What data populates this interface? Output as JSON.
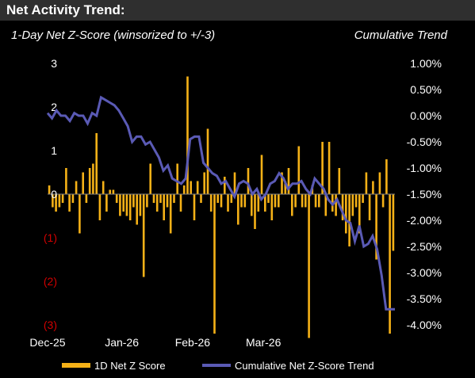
{
  "header": {
    "title": "Net Activity Trend:"
  },
  "subtitle_left": "1-Day Net Z-Score (winsorized to +/-3)",
  "subtitle_right": "Cumulative Trend",
  "colors": {
    "bars": "#f5b117",
    "line": "#5a5ab5",
    "negative_tick": "#d00000",
    "background": "#000000",
    "header_band": "#2f2f2f"
  },
  "chart_data": {
    "type": "bar+line",
    "x_tick_labels": [
      "Dec-25",
      "Jan-26",
      "Feb-26",
      "Mar-26"
    ],
    "x_tick_index": [
      0,
      22,
      43,
      64
    ],
    "left_axis": {
      "range": [
        -3,
        3
      ],
      "ticks": [
        3,
        2,
        1,
        0,
        -1,
        -2,
        -3
      ],
      "tick_labels": [
        "3",
        "2",
        "1",
        "0",
        "(1)",
        "(2)",
        "(3)"
      ]
    },
    "right_axis": {
      "range": [
        -4.0,
        1.0
      ],
      "ticks": [
        1.0,
        0.5,
        0.0,
        -0.5,
        -1.0,
        -1.5,
        -2.0,
        -2.5,
        -3.0,
        -3.5,
        -4.0
      ],
      "tick_labels": [
        "1.00%",
        "0.50%",
        "0.00%",
        "-0.50%",
        "-1.00%",
        "-1.50%",
        "-2.00%",
        "-2.50%",
        "-3.00%",
        "-3.50%",
        "-4.00%"
      ]
    },
    "series": [
      {
        "name": "1D Net Z Score",
        "type": "bar",
        "axis": "left",
        "values": [
          0.2,
          -0.3,
          -0.4,
          -0.3,
          -0.2,
          0.6,
          -0.4,
          -0.2,
          0.3,
          -0.9,
          0.5,
          -0.2,
          0.6,
          0.7,
          1.4,
          -0.6,
          0.3,
          -0.4,
          0.1,
          0.1,
          -0.2,
          -0.5,
          -0.4,
          -0.5,
          -0.6,
          -0.3,
          -0.7,
          -0.5,
          -1.9,
          -0.3,
          0.7,
          -0.2,
          -0.4,
          -0.2,
          -0.6,
          -0.3,
          -0.9,
          -0.2,
          0.7,
          -0.4,
          0.2,
          2.7,
          0.3,
          -0.6,
          0.3,
          -0.2,
          0.5,
          1.5,
          -0.4,
          -3.2,
          -0.2,
          -0.3,
          0.4,
          -0.4,
          -0.2,
          0.5,
          -0.7,
          -0.3,
          -0.3,
          0.6,
          -0.5,
          -0.8,
          -0.4,
          0.9,
          -0.4,
          -0.2,
          -0.6,
          -0.3,
          -0.3,
          0.5,
          0.3,
          0.6,
          -0.5,
          -0.3,
          1.1,
          -0.3,
          -0.3,
          -3.3,
          0.2,
          -0.3,
          -0.3,
          1.2,
          -0.5,
          1.2,
          -0.4,
          -0.5,
          0.6,
          -0.6,
          -0.9,
          -1.2,
          -0.5,
          -0.3,
          -0.9,
          -0.2,
          0.5,
          -0.6,
          0.3,
          -1.5,
          0.5,
          -0.3,
          0.8,
          -3.2,
          -1.3
        ]
      },
      {
        "name": "Cumulative Net Z-Score Trend",
        "type": "line",
        "axis": "right",
        "values": [
          0.05,
          -0.05,
          0.1,
          0.0,
          0.0,
          -0.1,
          0.05,
          0.0,
          0.0,
          -0.15,
          0.05,
          0.0,
          0.35,
          0.3,
          0.25,
          0.2,
          0.1,
          -0.05,
          -0.2,
          -0.5,
          -0.4,
          -0.4,
          -0.55,
          -0.5,
          -0.65,
          -0.8,
          -1.05,
          -0.95,
          -1.2,
          -1.25,
          -1.3,
          -1.2,
          -0.45,
          -0.4,
          -0.4,
          -0.9,
          -1.0,
          -1.1,
          -1.15,
          -1.3,
          -1.25,
          -1.4,
          -1.55,
          -1.3,
          -1.25,
          -1.3,
          -1.5,
          -1.4,
          -1.6,
          -1.5,
          -1.3,
          -1.25,
          -1.1,
          -1.2,
          -1.4,
          -1.3,
          -1.3,
          -1.25,
          -1.4,
          -1.5,
          -1.2,
          -1.3,
          -1.4,
          -1.6,
          -1.7,
          -1.6,
          -1.8,
          -2.0,
          -2.05,
          -2.4,
          -2.1,
          -2.5,
          -2.45,
          -2.3,
          -2.55,
          -3.05,
          -3.7,
          -3.7,
          -3.7
        ]
      }
    ],
    "grid": false,
    "legend": {
      "position": "bottom",
      "entries": [
        "1D Net Z Score",
        "Cumulative Net Z-Score Trend"
      ]
    }
  }
}
